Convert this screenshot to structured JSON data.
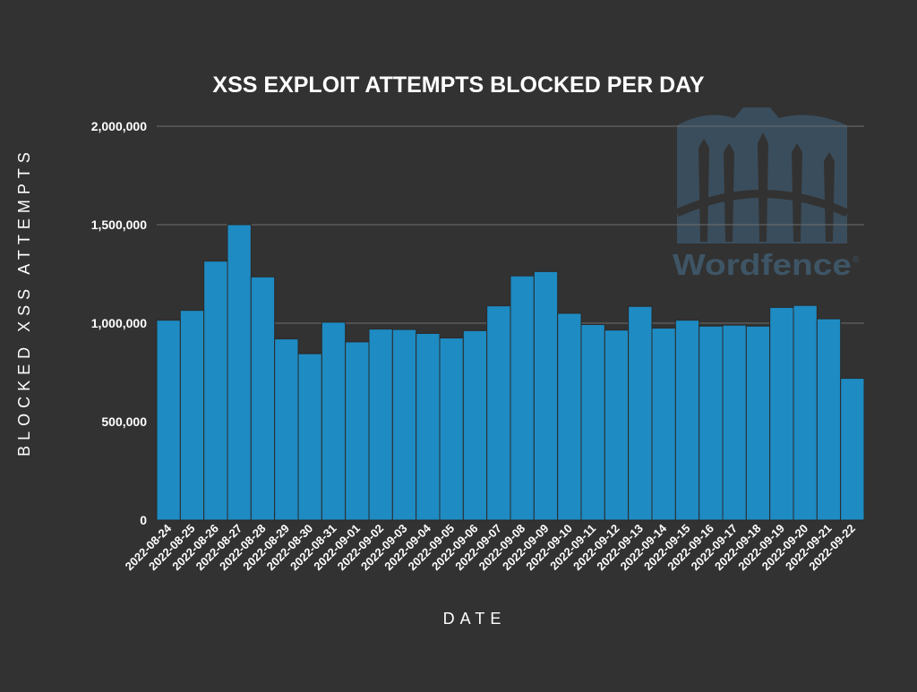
{
  "chart_data": {
    "type": "bar",
    "title": "XSS EXPLOIT ATTEMPTS BLOCKED PER DAY",
    "xlabel": "DATE",
    "ylabel": "BLOCKED XSS ATTEMPTS",
    "ylim": [
      0,
      2000000
    ],
    "yticks": [
      0,
      500000,
      1000000,
      1500000,
      2000000
    ],
    "ytick_labels": [
      "0",
      "500,000",
      "1,000,000",
      "1,500,000",
      "2,000,000"
    ],
    "grid": true,
    "legend": "none",
    "categories": [
      "2022-08-24",
      "2022-08-25",
      "2022-08-26",
      "2022-08-27",
      "2022-08-28",
      "2022-08-29",
      "2022-08-30",
      "2022-08-31",
      "2022-09-01",
      "2022-09-02",
      "2022-09-03",
      "2022-09-04",
      "2022-09-05",
      "2022-09-06",
      "2022-09-07",
      "2022-09-08",
      "2022-09-09",
      "2022-09-10",
      "2022-09-11",
      "2022-09-12",
      "2022-09-13",
      "2022-09-14",
      "2022-09-15",
      "2022-09-16",
      "2022-09-17",
      "2022-09-18",
      "2022-09-19",
      "2022-09-20",
      "2022-09-21",
      "2022-09-22"
    ],
    "values": [
      1015000,
      1065000,
      1315000,
      1500000,
      1235000,
      920000,
      845000,
      1005000,
      905000,
      970000,
      968000,
      948000,
      925000,
      962000,
      1088000,
      1240000,
      1262000,
      1050000,
      993000,
      965000,
      1085000,
      975000,
      1015000,
      985000,
      990000,
      985000,
      1080000,
      1090000,
      1022000,
      720000
    ]
  },
  "watermark": {
    "text": "Wordfence",
    "registered_mark": "®"
  },
  "colors": {
    "background": "#323232",
    "bar": "#1e8bc3",
    "bar_stroke": "#2b2b2b",
    "grid": "#6e6e6e",
    "text": "#ffffff",
    "watermark": "#3e5566"
  }
}
